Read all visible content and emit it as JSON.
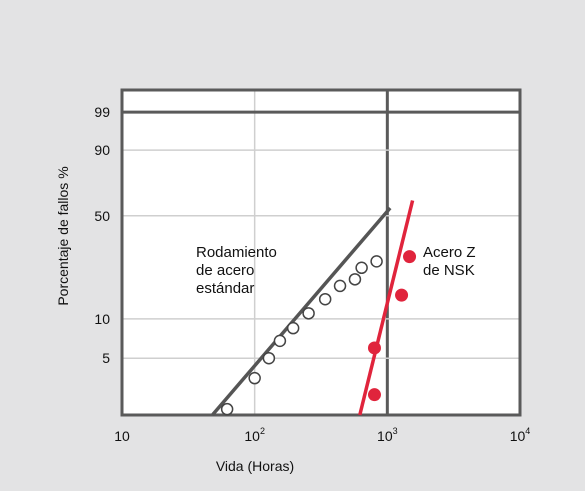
{
  "colors": {
    "background": "#e3e3e4",
    "plot_bg": "#ffffff",
    "frame": "#5a5a5a",
    "grid": "#cfcfcf",
    "standard_series": "#555555",
    "nsk_series": "#e0243c"
  },
  "chart_data": {
    "type": "scatter",
    "x_scale": "log",
    "y_scale": "weibull",
    "xlim": [
      10,
      10000
    ],
    "ylim": [
      1.8,
      99.9
    ],
    "grid": true,
    "xlabel": "Vida (Horas)",
    "ylabel": "Porcentaje de fallos %",
    "x_ticks": [
      {
        "value": 10,
        "label": "10",
        "sup": ""
      },
      {
        "value": 100,
        "label": "10",
        "sup": "2"
      },
      {
        "value": 1000,
        "label": "10",
        "sup": "3"
      },
      {
        "value": 10000,
        "label": "10",
        "sup": "4"
      }
    ],
    "y_ticks": [
      {
        "value": 5,
        "label": "5"
      },
      {
        "value": 10,
        "label": "10"
      },
      {
        "value": 50,
        "label": "50"
      },
      {
        "value": 90,
        "label": "90"
      },
      {
        "value": 99,
        "label": "99"
      }
    ],
    "series": [
      {
        "label_lines": [
          "Rodamiento",
          "de acero",
          "estándar"
        ],
        "marker": "open-circle",
        "points": [
          {
            "x": 62,
            "y": 2.0
          },
          {
            "x": 100,
            "y": 3.5
          },
          {
            "x": 128,
            "y": 5.0
          },
          {
            "x": 155,
            "y": 6.8
          },
          {
            "x": 195,
            "y": 8.5
          },
          {
            "x": 255,
            "y": 11.0
          },
          {
            "x": 340,
            "y": 14.0
          },
          {
            "x": 440,
            "y": 17.5
          },
          {
            "x": 570,
            "y": 19.5
          },
          {
            "x": 640,
            "y": 23.5
          },
          {
            "x": 830,
            "y": 26.0
          }
        ],
        "fit_line": [
          {
            "x": 48,
            "y": 1.8
          },
          {
            "x": 1050,
            "y": 55
          }
        ]
      },
      {
        "label_lines": [
          "Acero Z",
          "de NSK"
        ],
        "marker": "filled-circle",
        "points": [
          {
            "x": 800,
            "y": 2.6
          },
          {
            "x": 800,
            "y": 6.0
          },
          {
            "x": 1280,
            "y": 15.0
          },
          {
            "x": 1470,
            "y": 28.0
          }
        ],
        "fit_line": [
          {
            "x": 620,
            "y": 1.8
          },
          {
            "x": 1550,
            "y": 60
          }
        ]
      }
    ]
  }
}
